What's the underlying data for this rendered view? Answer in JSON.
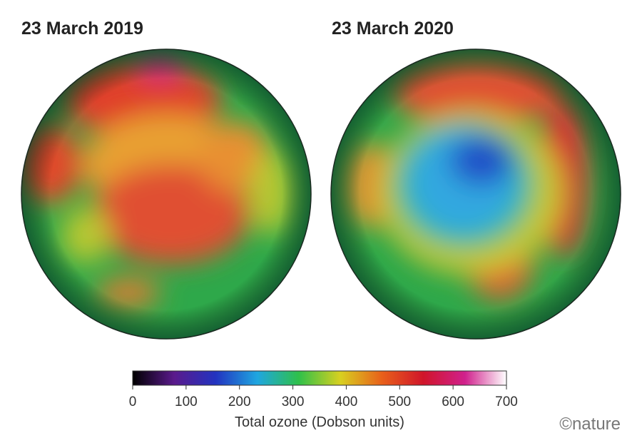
{
  "panels": [
    {
      "title": "23 March 2019"
    },
    {
      "title": "23 March 2020"
    }
  ],
  "colorbar": {
    "label": "Total ozone (Dobson units)",
    "lim": [
      0,
      700
    ],
    "ticks": [
      0,
      100,
      200,
      300,
      400,
      500,
      600,
      700
    ],
    "colors": [
      "#000000",
      "#5a1a8c",
      "#2233c0",
      "#1fa6e0",
      "#2fc04a",
      "#d8d020",
      "#e8601a",
      "#d0152a",
      "#d0208c",
      "#ffffff"
    ]
  },
  "credit": "©nature"
}
